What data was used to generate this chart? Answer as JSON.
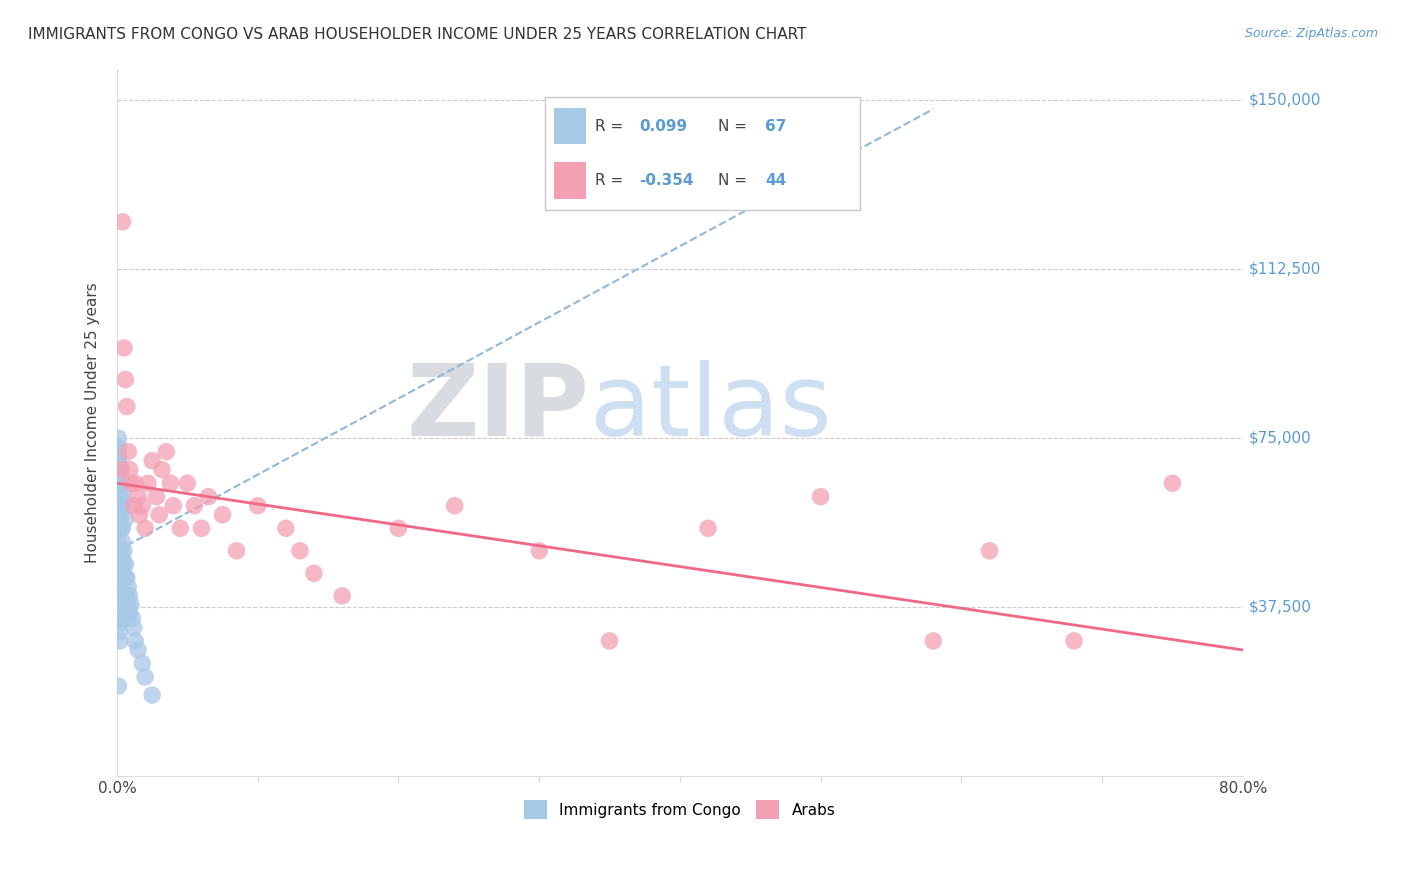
{
  "title": "IMMIGRANTS FROM CONGO VS ARAB HOUSEHOLDER INCOME UNDER 25 YEARS CORRELATION CHART",
  "source": "Source: ZipAtlas.com",
  "ylabel": "Householder Income Under 25 years",
  "ytick_labels": [
    "$37,500",
    "$75,000",
    "$112,500",
    "$150,000"
  ],
  "ytick_values": [
    37500,
    75000,
    112500,
    150000
  ],
  "ymin": 0,
  "ymax": 157000,
  "xmin": 0.0,
  "xmax": 0.8,
  "congo_color": "#a8c8e8",
  "arab_color": "#f4a0b4",
  "trendline_color_congo": "#90b8d8",
  "trendline_color_arab": "#f06888",
  "background_color": "#ffffff",
  "grid_color": "#cccccc",
  "watermark_zip_color": "#b0b8c8",
  "watermark_atlas_color": "#90b8e0",
  "congo_scatter_x": [
    0.001,
    0.001,
    0.001,
    0.001,
    0.001,
    0.001,
    0.001,
    0.001,
    0.001,
    0.001,
    0.002,
    0.002,
    0.002,
    0.002,
    0.002,
    0.002,
    0.002,
    0.002,
    0.002,
    0.002,
    0.003,
    0.003,
    0.003,
    0.003,
    0.003,
    0.003,
    0.003,
    0.003,
    0.004,
    0.004,
    0.004,
    0.004,
    0.004,
    0.004,
    0.005,
    0.005,
    0.005,
    0.005,
    0.005,
    0.006,
    0.006,
    0.006,
    0.007,
    0.007,
    0.007,
    0.008,
    0.008,
    0.009,
    0.009,
    0.01,
    0.011,
    0.012,
    0.013,
    0.015,
    0.018,
    0.02,
    0.025,
    0.001,
    0.001,
    0.001,
    0.002,
    0.002,
    0.003,
    0.004,
    0.005,
    0.006
  ],
  "congo_scatter_y": [
    72000,
    70000,
    68000,
    65000,
    62000,
    58000,
    55000,
    52000,
    50000,
    20000,
    48000,
    46000,
    44000,
    42000,
    40000,
    38000,
    36000,
    34000,
    32000,
    30000,
    62000,
    60000,
    58000,
    55000,
    50000,
    45000,
    40000,
    35000,
    55000,
    52000,
    48000,
    45000,
    40000,
    35000,
    50000,
    47000,
    44000,
    40000,
    36000,
    47000,
    44000,
    40000,
    44000,
    40000,
    36000,
    42000,
    38000,
    40000,
    36000,
    38000,
    35000,
    33000,
    30000,
    28000,
    25000,
    22000,
    18000,
    75000,
    73000,
    71000,
    69000,
    67000,
    65000,
    63000,
    60000,
    57000
  ],
  "arab_scatter_x": [
    0.003,
    0.004,
    0.005,
    0.006,
    0.007,
    0.008,
    0.009,
    0.01,
    0.012,
    0.013,
    0.015,
    0.016,
    0.018,
    0.02,
    0.022,
    0.025,
    0.028,
    0.03,
    0.032,
    0.035,
    0.038,
    0.04,
    0.045,
    0.05,
    0.055,
    0.06,
    0.065,
    0.075,
    0.085,
    0.1,
    0.12,
    0.13,
    0.14,
    0.16,
    0.2,
    0.24,
    0.3,
    0.35,
    0.42,
    0.5,
    0.58,
    0.62,
    0.68,
    0.75
  ],
  "arab_scatter_y": [
    68000,
    123000,
    95000,
    88000,
    82000,
    72000,
    68000,
    65000,
    60000,
    65000,
    62000,
    58000,
    60000,
    55000,
    65000,
    70000,
    62000,
    58000,
    68000,
    72000,
    65000,
    60000,
    55000,
    65000,
    60000,
    55000,
    62000,
    58000,
    50000,
    60000,
    55000,
    50000,
    45000,
    40000,
    55000,
    60000,
    50000,
    30000,
    55000,
    62000,
    30000,
    50000,
    30000,
    65000
  ]
}
